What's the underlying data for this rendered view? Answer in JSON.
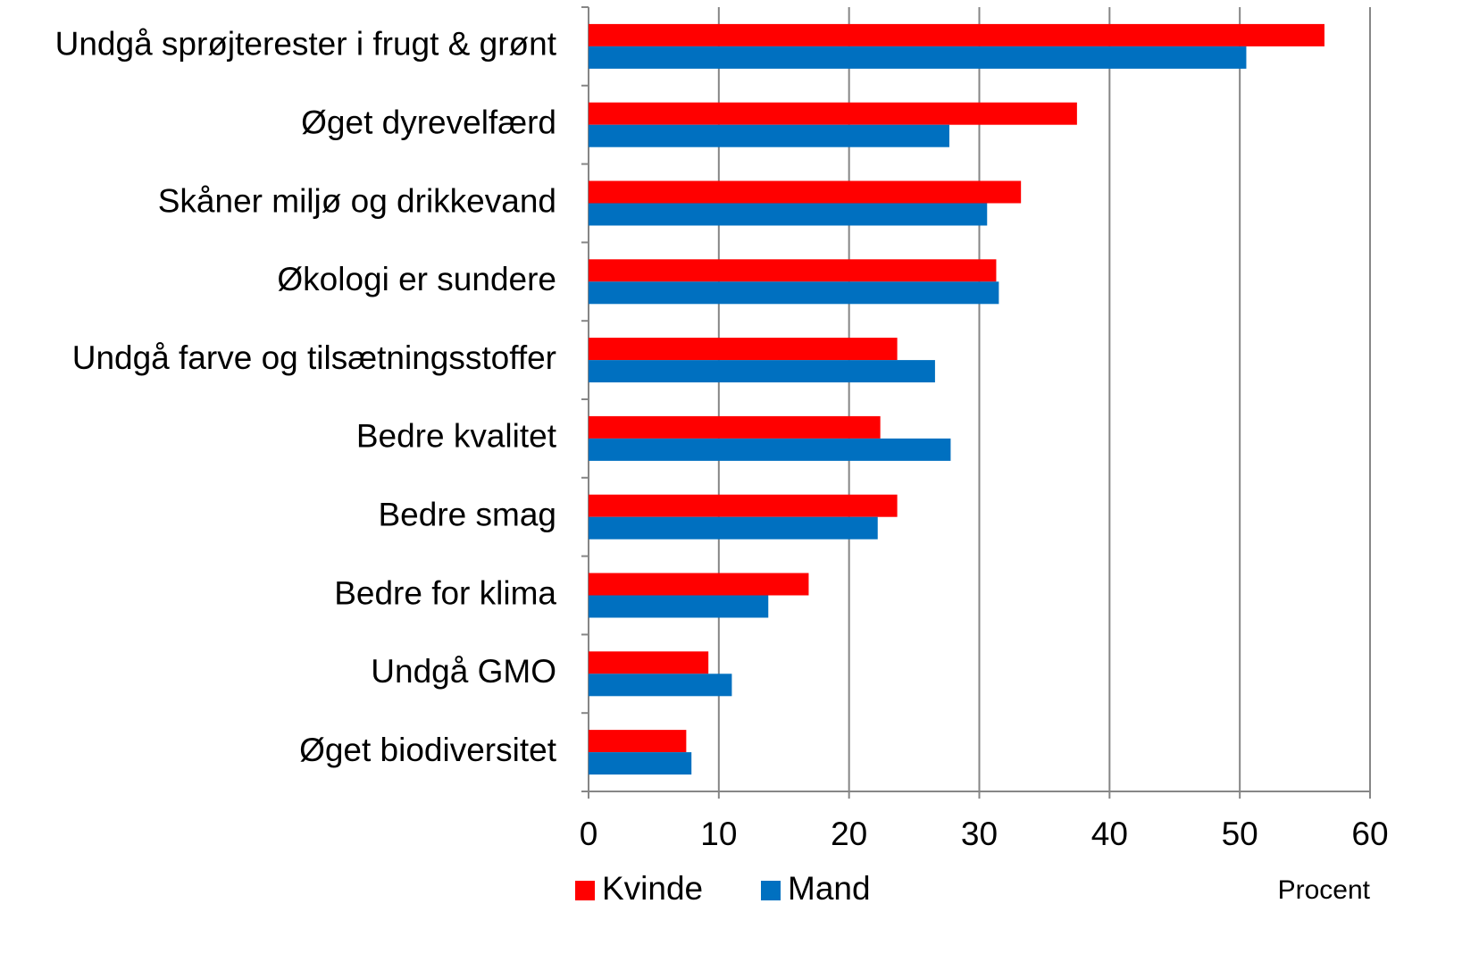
{
  "chart_data": {
    "type": "bar",
    "orientation": "horizontal",
    "categories": [
      "Undgå sprøjterester i frugt & grønt",
      "Øget dyrevelfærd",
      "Skåner miljø og drikkevand",
      "Økologi er sundere",
      "Undgå farve og tilsætningsstoffer",
      "Bedre kvalitet",
      "Bedre smag",
      "Bedre for klima",
      "Undgå GMO",
      "Øget biodiversitet"
    ],
    "series": [
      {
        "name": "Kvinde",
        "color": "#ff0000",
        "values": [
          56.5,
          37.5,
          33.2,
          31.3,
          23.7,
          22.4,
          23.7,
          16.9,
          9.2,
          7.5
        ]
      },
      {
        "name": "Mand",
        "color": "#0070c0",
        "values": [
          50.5,
          27.7,
          30.6,
          31.5,
          26.6,
          27.8,
          22.2,
          13.8,
          11.0,
          7.9
        ]
      }
    ],
    "x_label": "Procent",
    "xlim": [
      0,
      60
    ],
    "xticks": [
      0,
      10,
      20,
      30,
      40,
      50,
      60
    ],
    "grid": true,
    "legend": "bottom-left"
  }
}
